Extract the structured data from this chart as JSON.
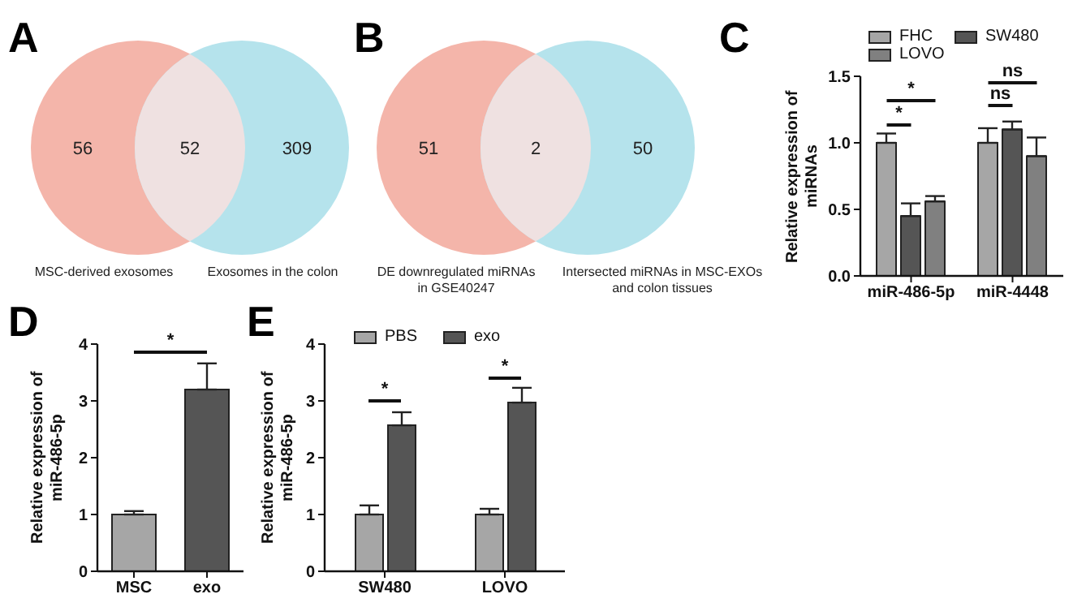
{
  "chart_data": [
    {
      "type": "other",
      "title": "A",
      "categories": [
        "MSC-derived exosomes",
        null,
        "Exosomes in the colon"
      ],
      "values": [
        56,
        52,
        309
      ],
      "colors": [
        "#f4b5aa",
        "#efe1e1",
        "#b5e3ec"
      ],
      "data_labels": true
    },
    {
      "type": "other",
      "title": "B",
      "categories": [
        "DE downregulated miRNAs in GSE40247",
        null,
        "Intersected miRNAs in MSC-EXOs and colon tissues"
      ],
      "values": [
        51,
        2,
        50
      ],
      "colors": [
        "#f4b5aa",
        "#efe1e1",
        "#b5e3ec"
      ],
      "data_labels": true
    },
    {
      "type": "bar",
      "title": "C",
      "ylabel": "Relative expression of miRNAs",
      "categories": [
        "miR-486-5p",
        "miR-4448"
      ],
      "series": [
        {
          "name": "FHC",
          "color": "#a6a6a6",
          "values": [
            1.0,
            1.0
          ],
          "errors": [
            [
              1.0,
              1.07
            ],
            [
              1.0,
              1.11
            ]
          ]
        },
        {
          "name": "SW480",
          "color": "#555555",
          "values": [
            0.45,
            1.1
          ],
          "errors": [
            [
              0.45,
              0.545
            ],
            [
              1.1,
              1.16
            ]
          ]
        },
        {
          "name": "LOVO",
          "color": "#808080",
          "values": [
            0.56,
            0.9
          ],
          "errors": [
            [
              0.56,
              0.6
            ],
            [
              0.9,
              1.04
            ]
          ]
        }
      ],
      "ylim": [
        0,
        1.5
      ],
      "yticks": [
        {
          "value": 0,
          "label": "0.0"
        },
        {
          "value": 0.5,
          "label": "0.5"
        },
        {
          "value": 1,
          "label": "1.0"
        },
        {
          "value": 1.5,
          "label": "1.5"
        }
      ],
      "legend": "top",
      "annotations": [
        "*",
        "*",
        "ns",
        "ns"
      ]
    },
    {
      "type": "bar",
      "title": "D",
      "ylabel": "Relative expression of miR-486-5p",
      "categories": [
        "MSC",
        "exo"
      ],
      "values": [
        1.0,
        3.2
      ],
      "colors": [
        "#a6a6a6",
        "#555555"
      ],
      "errors": [
        [
          1.0,
          1.06
        ],
        [
          3.2,
          3.66
        ]
      ],
      "ylim": [
        0,
        4
      ],
      "yticks": [
        0,
        1,
        2,
        3,
        4
      ],
      "annotations": [
        "*"
      ]
    },
    {
      "type": "bar",
      "title": "E",
      "ylabel": "Relative expression of miR-486-5p",
      "categories": [
        "SW480",
        "LOVO"
      ],
      "series": [
        {
          "name": "PBS",
          "color": "#a6a6a6",
          "values": [
            1.0,
            1.0
          ],
          "errors": [
            [
              1.0,
              1.16
            ],
            [
              1.0,
              1.1
            ]
          ]
        },
        {
          "name": "exo",
          "color": "#555555",
          "values": [
            2.57,
            2.97
          ],
          "errors": [
            [
              2.57,
              2.8
            ],
            [
              2.97,
              3.23
            ]
          ]
        }
      ],
      "ylim": [
        0,
        4
      ],
      "yticks": [
        0,
        1,
        2,
        3,
        4
      ],
      "legend": "top",
      "annotations": [
        "*",
        "*"
      ]
    }
  ]
}
